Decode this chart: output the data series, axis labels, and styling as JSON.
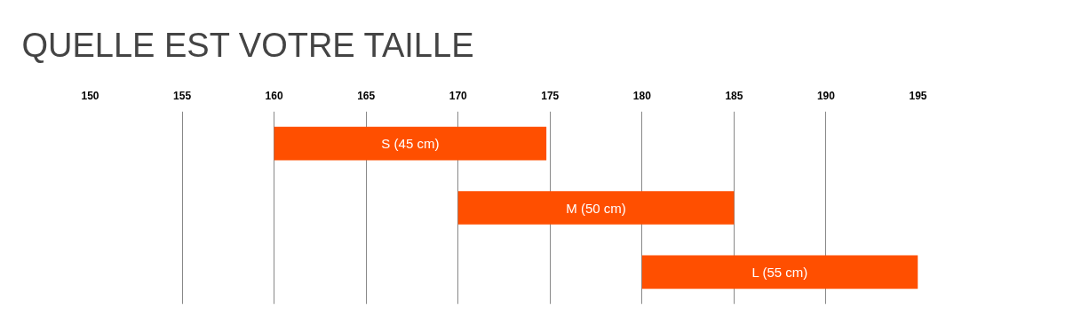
{
  "chart_data": {
    "type": "bar",
    "orientation": "horizontal",
    "title": "QUELLE EST VOTRE TAILLE",
    "categories": [
      "S (45 cm)",
      "M (50 cm)",
      "L (55 cm)"
    ],
    "base": [
      160,
      170,
      180
    ],
    "values": [
      14.8,
      15,
      15
    ],
    "color": "#ff4f00",
    "xlim": [
      150,
      195
    ],
    "xticks": [
      150,
      155,
      160,
      165,
      170,
      175,
      180,
      185,
      190,
      195
    ],
    "grid": "x",
    "tick_labels": "x"
  }
}
